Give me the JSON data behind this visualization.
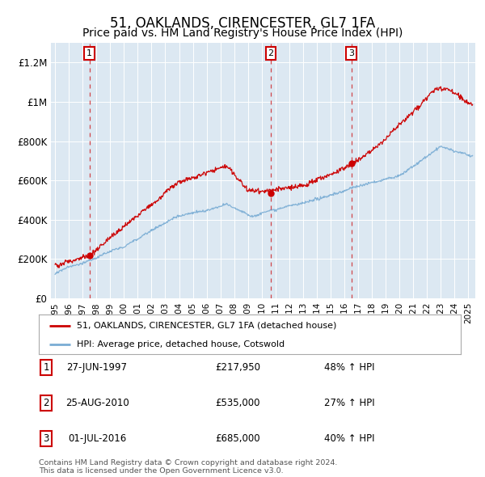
{
  "title": "51, OAKLANDS, CIRENCESTER, GL7 1FA",
  "subtitle": "Price paid vs. HM Land Registry's House Price Index (HPI)",
  "ylim": [
    0,
    1300000
  ],
  "xlim": [
    1994.7,
    2025.5
  ],
  "yticks": [
    0,
    200000,
    400000,
    600000,
    800000,
    1000000,
    1200000
  ],
  "ytick_labels": [
    "£0",
    "£200K",
    "£400K",
    "£600K",
    "£800K",
    "£1M",
    "£1.2M"
  ],
  "sales": [
    {
      "num": 1,
      "date": "27-JUN-1997",
      "year": 1997.49,
      "price": 217950,
      "pct": "48%",
      "dir": "↑"
    },
    {
      "num": 2,
      "date": "25-AUG-2010",
      "year": 2010.65,
      "price": 535000,
      "pct": "27%",
      "dir": "↑"
    },
    {
      "num": 3,
      "date": "01-JUL-2016",
      "year": 2016.5,
      "price": 685000,
      "pct": "40%",
      "dir": "↑"
    }
  ],
  "legend_label_red": "51, OAKLANDS, CIRENCESTER, GL7 1FA (detached house)",
  "legend_label_blue": "HPI: Average price, detached house, Cotswold",
  "footer1": "Contains HM Land Registry data © Crown copyright and database right 2024.",
  "footer2": "This data is licensed under the Open Government Licence v3.0.",
  "bg_color": "#dce8f2",
  "red_color": "#cc0000",
  "blue_color": "#7aadd4",
  "title_fontsize": 12,
  "subtitle_fontsize": 10
}
